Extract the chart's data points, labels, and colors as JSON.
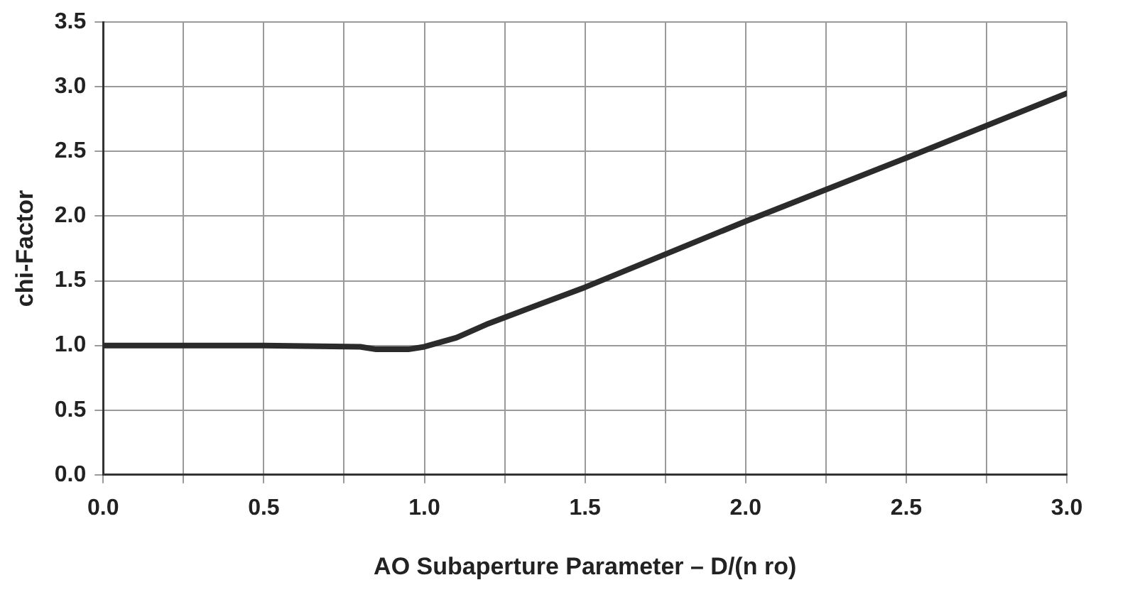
{
  "chart_data": {
    "type": "line",
    "xlabel": "AO Subaperture Parameter – D/(n ro)",
    "ylabel": "chi-Factor",
    "x": [
      0,
      0.5,
      0.8,
      0.85,
      0.95,
      1.0,
      1.1,
      1.2,
      1.5,
      2.0,
      2.5,
      3.0
    ],
    "series": [
      {
        "color": "#2b2b2b",
        "values": [
          1.0,
          1.0,
          0.99,
          0.97,
          0.97,
          0.99,
          1.06,
          1.17,
          1.45,
          1.96,
          2.45,
          2.95
        ]
      }
    ],
    "xlim": [
      0,
      3
    ],
    "ylim": [
      0,
      3.5
    ],
    "xticks": [
      {
        "value": 0,
        "label": "0.0"
      },
      {
        "value": 0.25,
        "label": null
      },
      {
        "value": 0.5,
        "label": "0.5"
      },
      {
        "value": 0.75,
        "label": null
      },
      {
        "value": 1,
        "label": "1.0"
      },
      {
        "value": 1.25,
        "label": null
      },
      {
        "value": 1.5,
        "label": "1.5"
      },
      {
        "value": 1.75,
        "label": null
      },
      {
        "value": 2,
        "label": "2.0"
      },
      {
        "value": 2.25,
        "label": null
      },
      {
        "value": 2.5,
        "label": "2.5"
      },
      {
        "value": 2.75,
        "label": null
      },
      {
        "value": 3,
        "label": "3.0"
      }
    ],
    "yticks": [
      {
        "value": 0,
        "label": "0.0"
      },
      {
        "value": 0.5,
        "label": "0.5"
      },
      {
        "value": 1,
        "label": "1.0"
      },
      {
        "value": 1.5,
        "label": "1.5"
      },
      {
        "value": 2,
        "label": "2.0"
      },
      {
        "value": 2.5,
        "label": "2.5"
      },
      {
        "value": 3,
        "label": "3.0"
      },
      {
        "value": 3.5,
        "label": "3.5"
      }
    ],
    "grid": true,
    "legend": false,
    "marker": "none",
    "line_style": "solid"
  }
}
